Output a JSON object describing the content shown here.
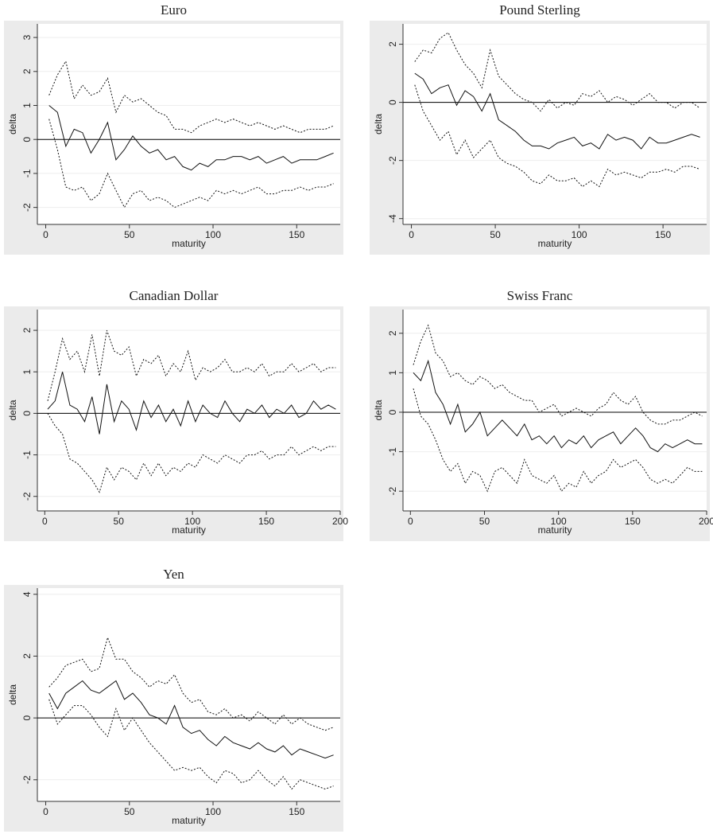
{
  "chart_data": [
    {
      "type": "line",
      "title": "Euro",
      "xlabel": "maturity",
      "ylabel": "delta",
      "x": [
        2,
        7,
        12,
        17,
        22,
        27,
        32,
        37,
        42,
        47,
        52,
        57,
        62,
        67,
        72,
        77,
        82,
        87,
        92,
        97,
        102,
        107,
        112,
        117,
        122,
        127,
        132,
        137,
        142,
        147,
        152,
        157,
        162,
        167,
        172
      ],
      "series": [
        {
          "color": "#111111",
          "style": "solid",
          "values": [
            1.0,
            0.8,
            -0.2,
            0.3,
            0.2,
            -0.4,
            0.0,
            0.5,
            -0.6,
            -0.3,
            0.1,
            -0.2,
            -0.4,
            -0.3,
            -0.6,
            -0.5,
            -0.8,
            -0.9,
            -0.7,
            -0.8,
            -0.6,
            -0.6,
            -0.5,
            -0.5,
            -0.6,
            -0.5,
            -0.7,
            -0.6,
            -0.5,
            -0.7,
            -0.6,
            -0.6,
            -0.6,
            -0.5,
            -0.4
          ]
        },
        {
          "color": "#111111",
          "style": "dashed",
          "values": [
            1.3,
            1.9,
            2.3,
            1.2,
            1.6,
            1.3,
            1.4,
            1.8,
            0.8,
            1.3,
            1.1,
            1.2,
            1.0,
            0.8,
            0.7,
            0.3,
            0.3,
            0.2,
            0.4,
            0.5,
            0.6,
            0.5,
            0.6,
            0.5,
            0.4,
            0.5,
            0.4,
            0.3,
            0.4,
            0.3,
            0.2,
            0.3,
            0.3,
            0.3,
            0.4
          ]
        },
        {
          "color": "#111111",
          "style": "dashed",
          "values": [
            0.6,
            -0.3,
            -1.4,
            -1.5,
            -1.4,
            -1.8,
            -1.6,
            -1.0,
            -1.5,
            -2.0,
            -1.6,
            -1.5,
            -1.8,
            -1.7,
            -1.8,
            -2.0,
            -1.9,
            -1.8,
            -1.7,
            -1.8,
            -1.5,
            -1.6,
            -1.5,
            -1.6,
            -1.5,
            -1.4,
            -1.6,
            -1.6,
            -1.5,
            -1.5,
            -1.4,
            -1.5,
            -1.4,
            -1.4,
            -1.3
          ]
        }
      ],
      "xlim": [
        -5,
        176
      ],
      "xticks": [
        0,
        50,
        100,
        150
      ],
      "ylim": [
        -2.5,
        3.4
      ],
      "yticks": [
        -2,
        -1,
        0,
        1,
        2,
        3
      ],
      "reference_line": 0,
      "grid": true
    },
    {
      "type": "line",
      "title": "Pound Sterling",
      "xlabel": "maturity",
      "ylabel": "delta",
      "x": [
        2,
        7,
        12,
        17,
        22,
        27,
        32,
        37,
        42,
        47,
        52,
        57,
        62,
        67,
        72,
        77,
        82,
        87,
        92,
        97,
        102,
        107,
        112,
        117,
        122,
        127,
        132,
        137,
        142,
        147,
        152,
        157,
        162,
        167,
        172
      ],
      "series": [
        {
          "color": "#111111",
          "style": "solid",
          "values": [
            1.0,
            0.8,
            0.3,
            0.5,
            0.6,
            -0.1,
            0.4,
            0.2,
            -0.3,
            0.3,
            -0.6,
            -0.8,
            -1.0,
            -1.3,
            -1.5,
            -1.5,
            -1.6,
            -1.4,
            -1.3,
            -1.2,
            -1.5,
            -1.4,
            -1.6,
            -1.1,
            -1.3,
            -1.2,
            -1.3,
            -1.6,
            -1.2,
            -1.4,
            -1.4,
            -1.3,
            -1.2,
            -1.1,
            -1.2
          ]
        },
        {
          "color": "#111111",
          "style": "dashed",
          "values": [
            1.4,
            1.8,
            1.7,
            2.2,
            2.4,
            1.8,
            1.3,
            1.0,
            0.5,
            1.8,
            0.9,
            0.6,
            0.3,
            0.1,
            0.0,
            -0.3,
            0.1,
            -0.2,
            0.0,
            -0.1,
            0.3,
            0.2,
            0.4,
            0.0,
            0.2,
            0.1,
            -0.1,
            0.1,
            0.3,
            0.0,
            0.0,
            -0.2,
            0.0,
            0.0,
            -0.2
          ]
        },
        {
          "color": "#111111",
          "style": "dashed",
          "values": [
            0.6,
            -0.3,
            -0.8,
            -1.3,
            -1.0,
            -1.8,
            -1.3,
            -1.9,
            -1.6,
            -1.3,
            -1.9,
            -2.1,
            -2.2,
            -2.4,
            -2.7,
            -2.8,
            -2.5,
            -2.7,
            -2.7,
            -2.6,
            -2.9,
            -2.7,
            -2.9,
            -2.3,
            -2.5,
            -2.4,
            -2.5,
            -2.6,
            -2.4,
            -2.4,
            -2.3,
            -2.4,
            -2.2,
            -2.2,
            -2.3
          ]
        }
      ],
      "xlim": [
        -5,
        176
      ],
      "xticks": [
        0,
        50,
        100,
        150
      ],
      "ylim": [
        -4.2,
        2.7
      ],
      "yticks": [
        -4,
        -2,
        0,
        2
      ],
      "reference_line": 0,
      "grid": true
    },
    {
      "type": "line",
      "title": "Canadian Dollar",
      "xlabel": "maturity",
      "ylabel": "delta",
      "x": [
        2,
        7,
        12,
        17,
        22,
        27,
        32,
        37,
        42,
        47,
        52,
        57,
        62,
        67,
        72,
        77,
        82,
        87,
        92,
        97,
        102,
        107,
        112,
        117,
        122,
        127,
        132,
        137,
        142,
        147,
        152,
        157,
        162,
        167,
        172,
        177,
        182,
        187,
        192,
        197
      ],
      "series": [
        {
          "color": "#111111",
          "style": "solid",
          "values": [
            0.1,
            0.3,
            1.0,
            0.2,
            0.1,
            -0.2,
            0.4,
            -0.5,
            0.7,
            -0.2,
            0.3,
            0.1,
            -0.4,
            0.3,
            -0.1,
            0.2,
            -0.2,
            0.1,
            -0.3,
            0.3,
            -0.2,
            0.2,
            0.0,
            -0.1,
            0.3,
            0.0,
            -0.2,
            0.1,
            0.0,
            0.2,
            -0.1,
            0.1,
            0.0,
            0.2,
            -0.1,
            0.0,
            0.3,
            0.1,
            0.2,
            0.1
          ]
        },
        {
          "color": "#111111",
          "style": "dashed",
          "values": [
            0.3,
            1.0,
            1.8,
            1.3,
            1.5,
            1.0,
            1.9,
            0.9,
            2.0,
            1.5,
            1.4,
            1.6,
            0.9,
            1.3,
            1.2,
            1.4,
            0.9,
            1.2,
            1.0,
            1.5,
            0.8,
            1.1,
            1.0,
            1.1,
            1.3,
            1.0,
            1.0,
            1.1,
            1.0,
            1.2,
            0.9,
            1.0,
            1.0,
            1.2,
            1.0,
            1.1,
            1.2,
            1.0,
            1.1,
            1.1
          ]
        },
        {
          "color": "#111111",
          "style": "dashed",
          "values": [
            0.0,
            -0.3,
            -0.5,
            -1.1,
            -1.2,
            -1.4,
            -1.6,
            -1.9,
            -1.3,
            -1.6,
            -1.3,
            -1.4,
            -1.6,
            -1.2,
            -1.5,
            -1.2,
            -1.5,
            -1.3,
            -1.4,
            -1.2,
            -1.3,
            -1.0,
            -1.1,
            -1.2,
            -1.0,
            -1.1,
            -1.2,
            -1.0,
            -1.0,
            -0.9,
            -1.1,
            -1.0,
            -1.0,
            -0.8,
            -1.0,
            -0.9,
            -0.8,
            -0.9,
            -0.8,
            -0.8
          ]
        }
      ],
      "xlim": [
        -5,
        200
      ],
      "xticks": [
        0,
        50,
        100,
        150,
        200
      ],
      "ylim": [
        -2.35,
        2.5
      ],
      "yticks": [
        -2,
        -1,
        0,
        1,
        2
      ],
      "reference_line": 0,
      "grid": true
    },
    {
      "type": "line",
      "title": "Swiss Franc",
      "xlabel": "maturity",
      "ylabel": "delta",
      "x": [
        2,
        7,
        12,
        17,
        22,
        27,
        32,
        37,
        42,
        47,
        52,
        57,
        62,
        67,
        72,
        77,
        82,
        87,
        92,
        97,
        102,
        107,
        112,
        117,
        122,
        127,
        132,
        137,
        142,
        147,
        152,
        157,
        162,
        167,
        172,
        177,
        182,
        187,
        192,
        197
      ],
      "series": [
        {
          "color": "#111111",
          "style": "solid",
          "values": [
            1.0,
            0.8,
            1.3,
            0.5,
            0.2,
            -0.3,
            0.2,
            -0.5,
            -0.3,
            0.0,
            -0.6,
            -0.4,
            -0.2,
            -0.4,
            -0.6,
            -0.3,
            -0.7,
            -0.6,
            -0.8,
            -0.6,
            -0.9,
            -0.7,
            -0.8,
            -0.6,
            -0.9,
            -0.7,
            -0.6,
            -0.5,
            -0.8,
            -0.6,
            -0.4,
            -0.6,
            -0.9,
            -1.0,
            -0.8,
            -0.9,
            -0.8,
            -0.7,
            -0.8,
            -0.8
          ]
        },
        {
          "color": "#111111",
          "style": "dashed",
          "values": [
            1.2,
            1.8,
            2.2,
            1.5,
            1.3,
            0.9,
            1.0,
            0.8,
            0.7,
            0.9,
            0.8,
            0.6,
            0.7,
            0.5,
            0.4,
            0.3,
            0.3,
            0.0,
            0.1,
            0.2,
            -0.1,
            0.0,
            0.1,
            0.0,
            -0.1,
            0.1,
            0.2,
            0.5,
            0.3,
            0.2,
            0.4,
            0.0,
            -0.2,
            -0.3,
            -0.3,
            -0.2,
            -0.2,
            -0.1,
            0.0,
            -0.1
          ]
        },
        {
          "color": "#111111",
          "style": "dashed",
          "values": [
            0.6,
            -0.1,
            -0.3,
            -0.7,
            -1.2,
            -1.5,
            -1.3,
            -1.8,
            -1.5,
            -1.6,
            -2.0,
            -1.5,
            -1.4,
            -1.6,
            -1.8,
            -1.2,
            -1.6,
            -1.7,
            -1.8,
            -1.6,
            -2.0,
            -1.8,
            -1.9,
            -1.5,
            -1.8,
            -1.6,
            -1.5,
            -1.2,
            -1.4,
            -1.3,
            -1.2,
            -1.4,
            -1.7,
            -1.8,
            -1.7,
            -1.8,
            -1.6,
            -1.4,
            -1.5,
            -1.5
          ]
        }
      ],
      "xlim": [
        -5,
        200
      ],
      "xticks": [
        0,
        50,
        100,
        150,
        200
      ],
      "ylim": [
        -2.5,
        2.6
      ],
      "yticks": [
        -2,
        -1,
        0,
        1,
        2
      ],
      "reference_line": 0,
      "grid": true
    },
    {
      "type": "line",
      "title": "Yen",
      "xlabel": "maturity",
      "ylabel": "delta",
      "x": [
        2,
        7,
        12,
        17,
        22,
        27,
        32,
        37,
        42,
        47,
        52,
        57,
        62,
        67,
        72,
        77,
        82,
        87,
        92,
        97,
        102,
        107,
        112,
        117,
        122,
        127,
        132,
        137,
        142,
        147,
        152,
        157,
        162,
        167,
        172
      ],
      "series": [
        {
          "color": "#111111",
          "style": "solid",
          "values": [
            0.8,
            0.3,
            0.8,
            1.0,
            1.2,
            0.9,
            0.8,
            1.0,
            1.2,
            0.6,
            0.8,
            0.5,
            0.1,
            0.0,
            -0.2,
            0.4,
            -0.3,
            -0.5,
            -0.4,
            -0.7,
            -0.9,
            -0.6,
            -0.8,
            -0.9,
            -1.0,
            -0.8,
            -1.0,
            -1.1,
            -0.9,
            -1.2,
            -1.0,
            -1.1,
            -1.2,
            -1.3,
            -1.2
          ]
        },
        {
          "color": "#111111",
          "style": "dashed",
          "values": [
            1.0,
            1.3,
            1.7,
            1.8,
            1.9,
            1.5,
            1.6,
            2.6,
            1.9,
            1.9,
            1.5,
            1.3,
            1.0,
            1.2,
            1.1,
            1.4,
            0.8,
            0.5,
            0.6,
            0.2,
            0.1,
            0.3,
            0.0,
            0.1,
            -0.1,
            0.2,
            0.0,
            -0.2,
            0.1,
            -0.2,
            0.0,
            -0.2,
            -0.3,
            -0.4,
            -0.3
          ]
        },
        {
          "color": "#111111",
          "style": "dashed",
          "values": [
            0.6,
            -0.2,
            0.1,
            0.4,
            0.4,
            0.1,
            -0.3,
            -0.6,
            0.3,
            -0.4,
            0.0,
            -0.4,
            -0.8,
            -1.1,
            -1.4,
            -1.7,
            -1.6,
            -1.7,
            -1.6,
            -1.9,
            -2.1,
            -1.7,
            -1.8,
            -2.1,
            -2.0,
            -1.7,
            -2.0,
            -2.2,
            -1.9,
            -2.3,
            -2.0,
            -2.1,
            -2.2,
            -2.3,
            -2.2
          ]
        }
      ],
      "xlim": [
        -5,
        176
      ],
      "xticks": [
        0,
        50,
        100,
        150
      ],
      "ylim": [
        -2.7,
        4.2
      ],
      "yticks": [
        -2,
        0,
        2,
        4
      ],
      "reference_line": 0,
      "grid": true
    }
  ]
}
